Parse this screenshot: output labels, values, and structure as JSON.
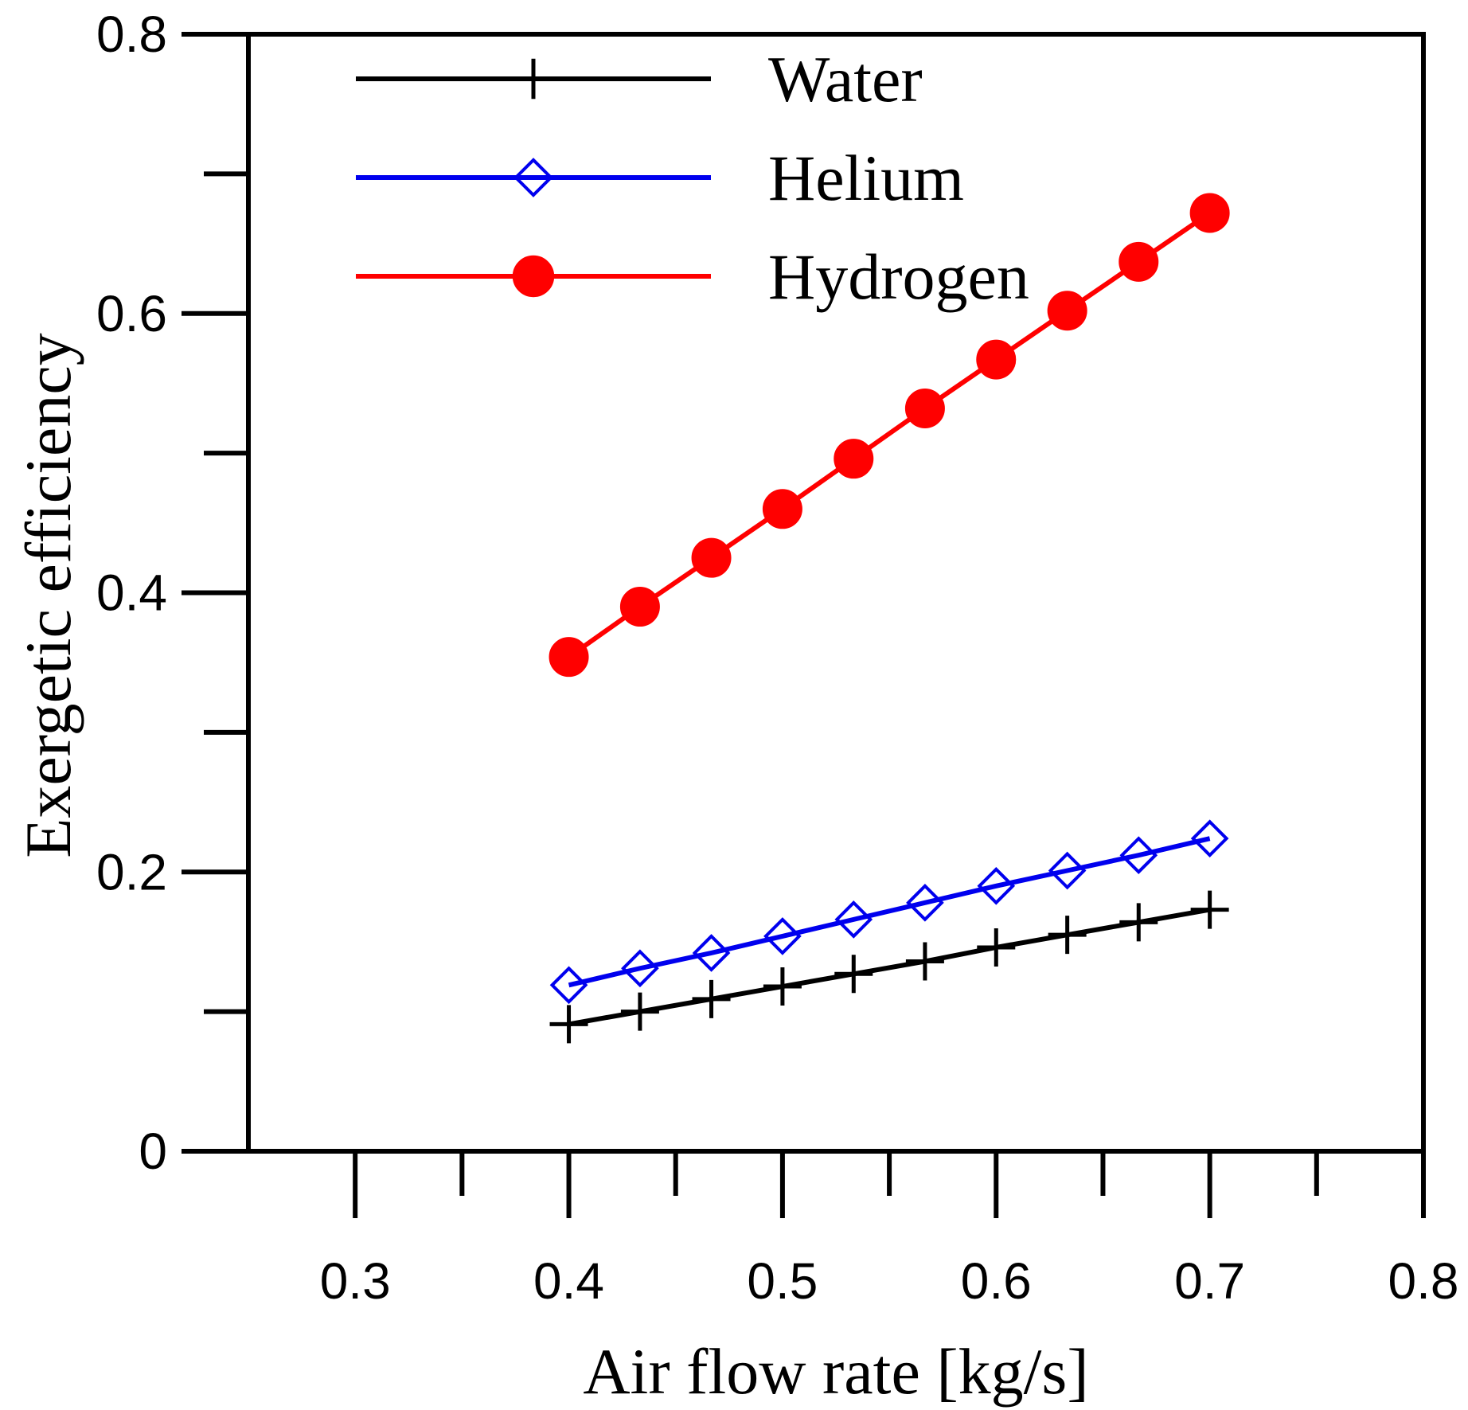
{
  "chart_data": {
    "type": "line",
    "title": "",
    "xlabel": "Air flow rate [kg/s]",
    "ylabel": "Exergetic efficiency",
    "xlim": [
      0.25,
      0.8
    ],
    "ylim": [
      0,
      0.8
    ],
    "x_ticks": [
      0.3,
      0.35,
      0.4,
      0.45,
      0.5,
      0.55,
      0.6,
      0.65,
      0.7,
      0.75,
      0.8
    ],
    "x_tick_labels": [
      "0.3",
      "",
      "0.4",
      "",
      "0.5",
      "",
      "0.6",
      "",
      "0.7",
      "",
      "0.8"
    ],
    "y_ticks": [
      0,
      0.1,
      0.2,
      0.3,
      0.4,
      0.5,
      0.6,
      0.7,
      0.8
    ],
    "y_tick_labels": [
      "0",
      "",
      "0.2",
      "",
      "0.4",
      "",
      "0.6",
      "",
      "0.8"
    ],
    "grid": false,
    "legend_position": "top-left",
    "x": [
      0.4,
      0.4333,
      0.4667,
      0.5,
      0.5333,
      0.5667,
      0.6,
      0.6333,
      0.6667,
      0.7
    ],
    "series": [
      {
        "name": "Water",
        "color": "#000000",
        "marker": "plus",
        "values": [
          0.091,
          0.1,
          0.109,
          0.118,
          0.127,
          0.136,
          0.146,
          0.155,
          0.164,
          0.173
        ]
      },
      {
        "name": "Helium",
        "color": "#0000ee",
        "marker": "diamond",
        "values": [
          0.119,
          0.131,
          0.142,
          0.154,
          0.166,
          0.178,
          0.19,
          0.201,
          0.212,
          0.224
        ]
      },
      {
        "name": "Hydrogen",
        "color": "#ff0000",
        "marker": "circle",
        "values": [
          0.354,
          0.39,
          0.425,
          0.46,
          0.496,
          0.532,
          0.567,
          0.602,
          0.637,
          0.672
        ]
      }
    ]
  }
}
